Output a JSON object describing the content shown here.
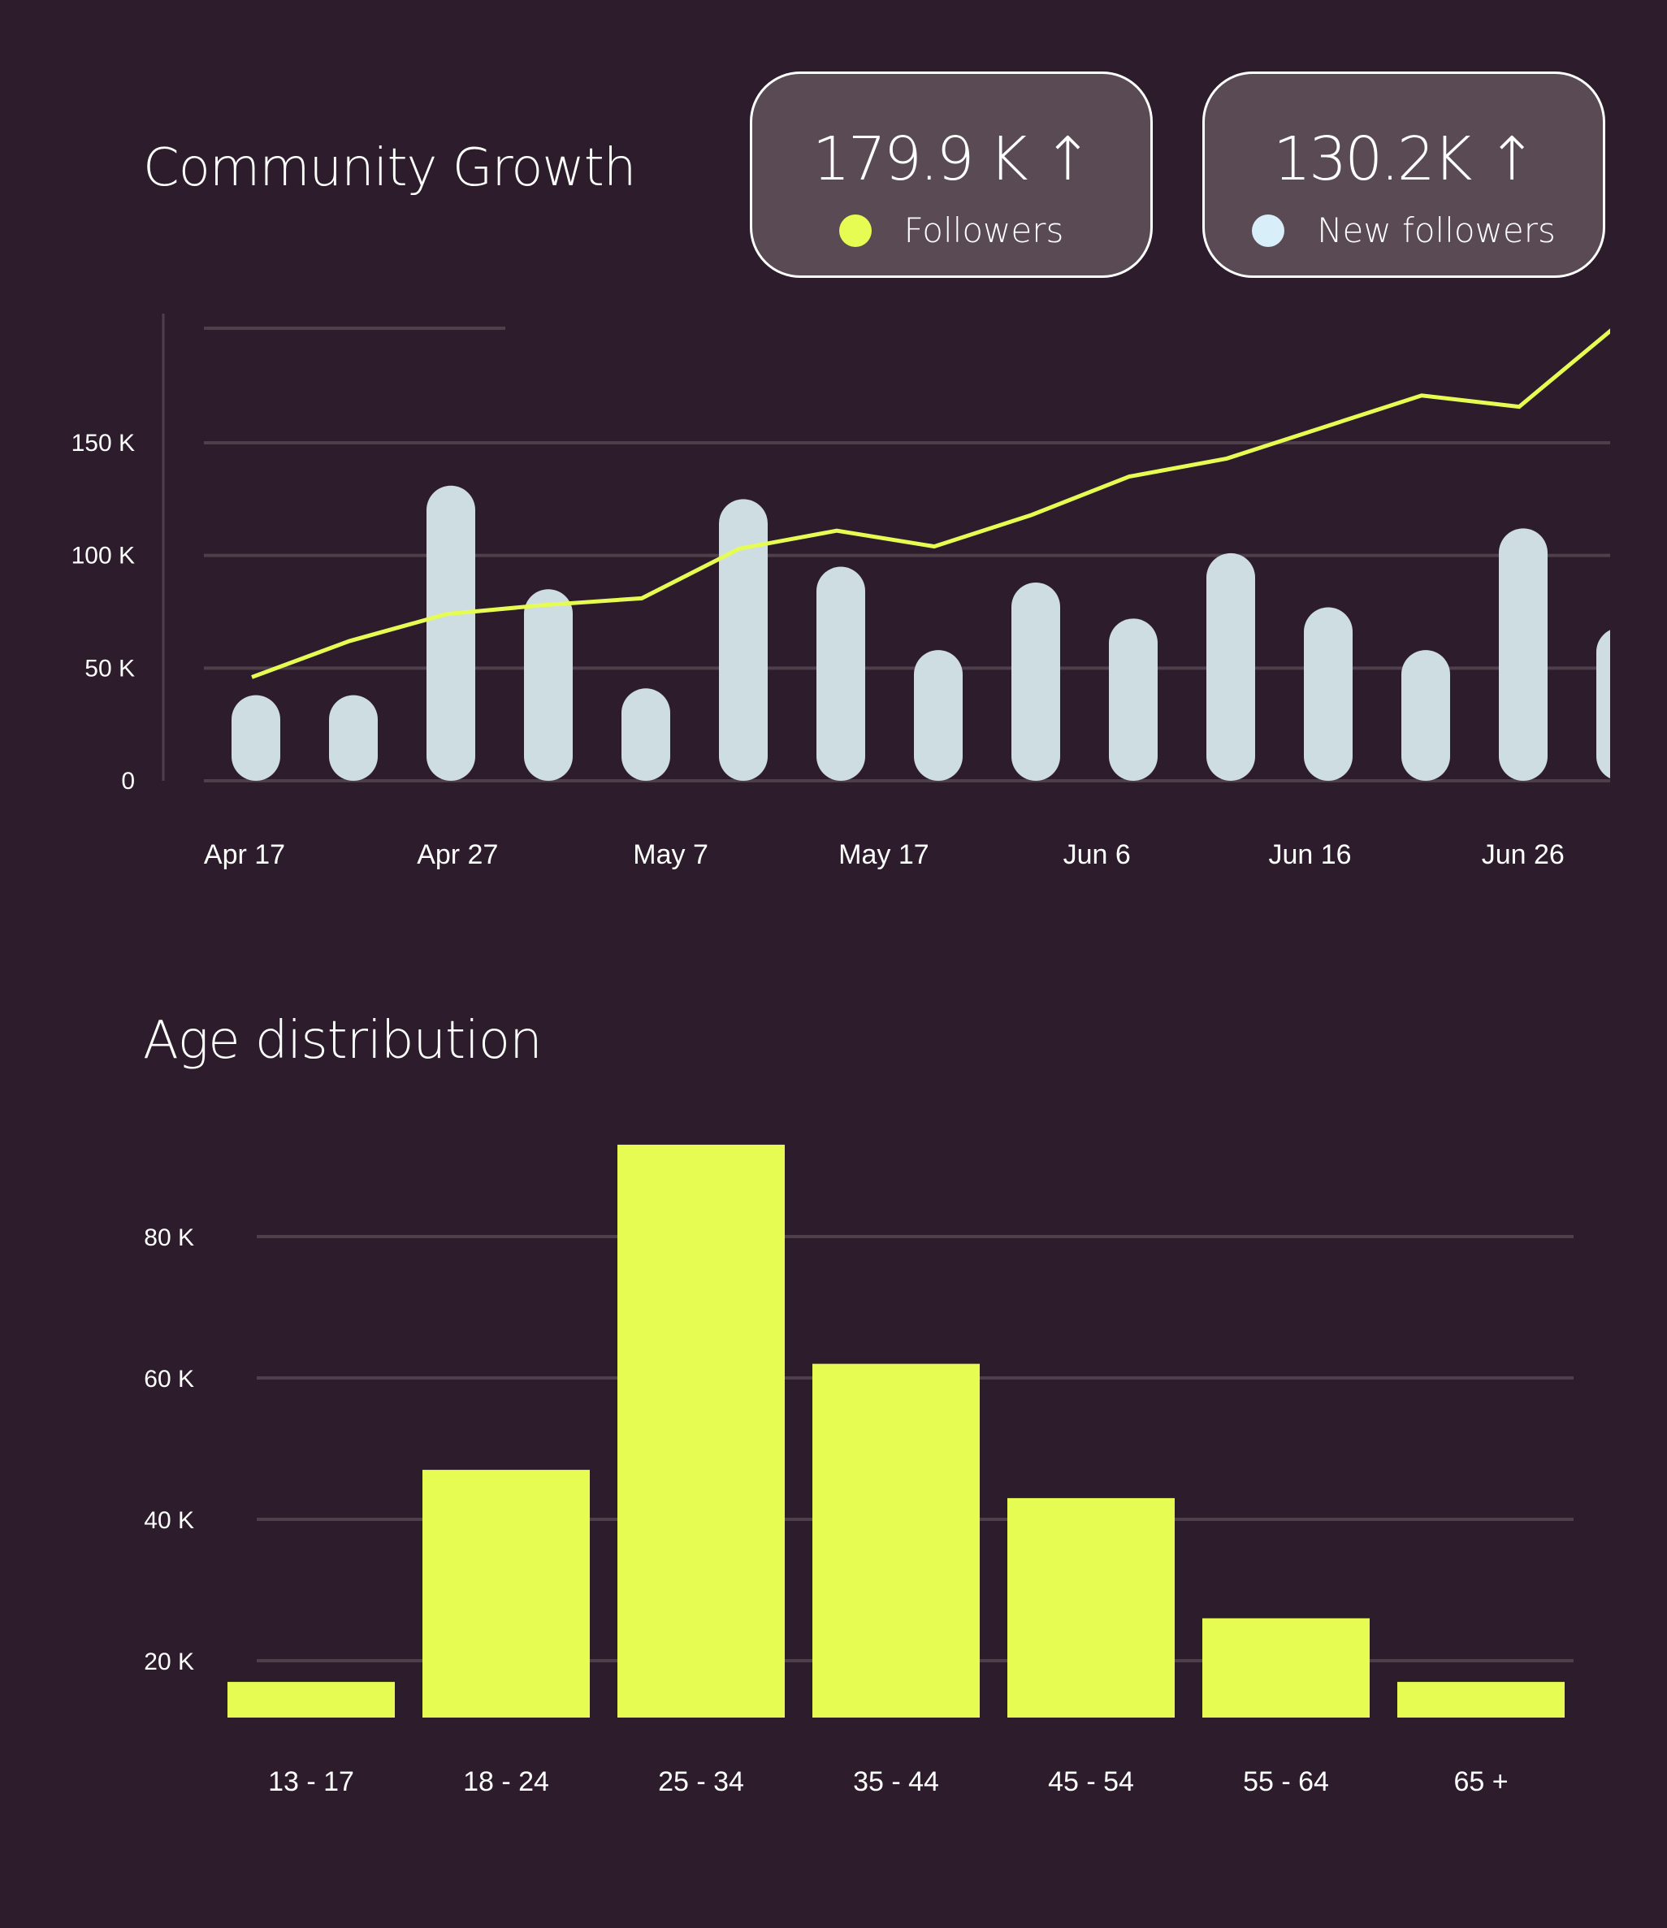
{
  "colors": {
    "background": "#2d1c2b",
    "card": "#594a53",
    "followers": "#e6fc52",
    "new_followers": "#d8eef8",
    "bars": "#cddde2",
    "grid": "#4e3f4b"
  },
  "cards": [
    {
      "value": "179.9 K",
      "arrow_icon": "arrow-up-icon",
      "label": "Followers"
    },
    {
      "value": "130.2K",
      "arrow_icon": "arrow-up-icon",
      "label": "New followers"
    }
  ],
  "chart_data": [
    {
      "type": "bar+line",
      "title": "Community Growth",
      "yticks": [
        {
          "v": 0,
          "label": "0"
        },
        {
          "v": 50,
          "label": "50 K"
        },
        {
          "v": 100,
          "label": "100 K"
        },
        {
          "v": 150,
          "label": "150 K"
        }
      ],
      "xtick_labels": [
        "Apr 17",
        "Apr 27",
        "May 7",
        "May 17",
        "Jun 6",
        "Jun 16",
        "Jun 26"
      ],
      "ylim": [
        0,
        200
      ],
      "series": [
        {
          "name": "New followers",
          "type": "bar",
          "values": [
            38,
            38,
            131,
            85,
            41,
            125,
            95,
            58,
            88,
            72,
            101,
            77,
            58,
            112,
            68
          ]
        },
        {
          "name": "Followers",
          "type": "line",
          "values": [
            46,
            62,
            74,
            78,
            81,
            103,
            111,
            104,
            118,
            135,
            143,
            157,
            171,
            166,
            202
          ]
        }
      ]
    },
    {
      "type": "bar",
      "title": "Age distribution",
      "categories": [
        "13 - 17",
        "18 - 24",
        "25 - 34",
        "35 - 44",
        "45 - 54",
        "55 - 64",
        "65 +"
      ],
      "values": [
        17,
        47,
        93,
        62,
        43,
        26,
        17
      ],
      "yticks": [
        {
          "v": 20,
          "label": "20 K"
        },
        {
          "v": 40,
          "label": "40 K"
        },
        {
          "v": 60,
          "label": "60 K"
        },
        {
          "v": 80,
          "label": "80 K"
        }
      ],
      "ylabel": "",
      "xlabel": ""
    }
  ]
}
